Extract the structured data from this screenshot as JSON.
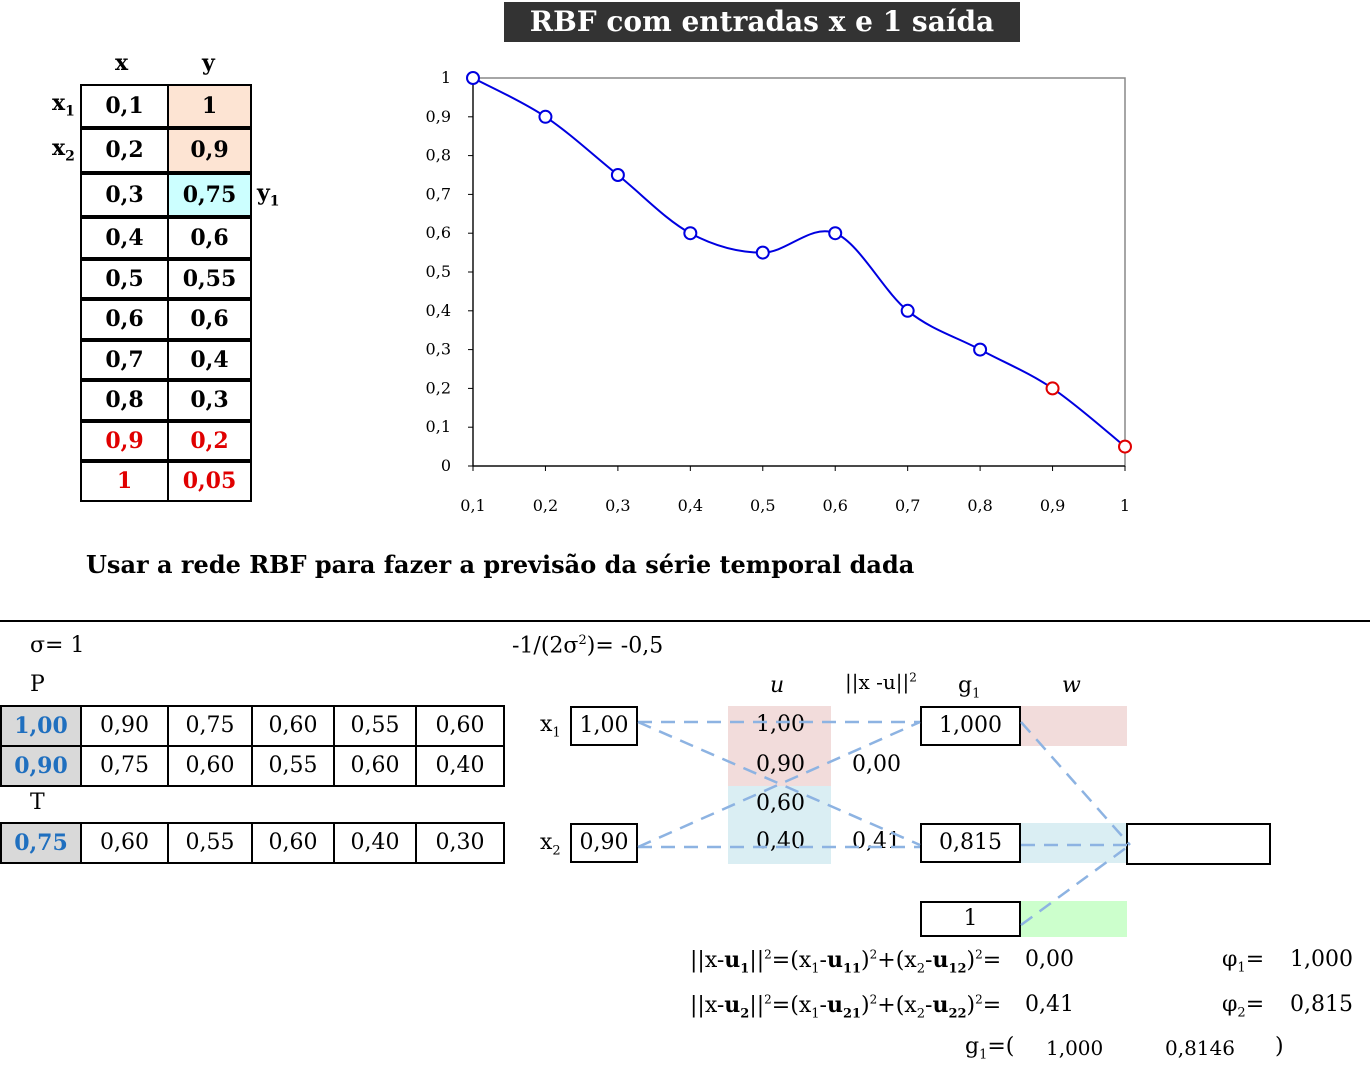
{
  "title": "RBF com entradas x e 1 saída",
  "data_table": {
    "col_x": "x",
    "col_y": "y",
    "row_label_1": "x",
    "row_label_1_sub": "1",
    "row_label_2": "x",
    "row_label_2_sub": "2",
    "y_label": "y",
    "y_label_sub": "1",
    "rows": [
      {
        "x": "0,1",
        "y": "1"
      },
      {
        "x": "0,2",
        "y": "0,9"
      },
      {
        "x": "0,3",
        "y": "0,75"
      },
      {
        "x": "0,4",
        "y": "0,6"
      },
      {
        "x": "0,5",
        "y": "0,55"
      },
      {
        "x": "0,6",
        "y": "0,6"
      },
      {
        "x": "0,7",
        "y": "0,4"
      },
      {
        "x": "0,8",
        "y": "0,3"
      },
      {
        "x": "0,9",
        "y": "0,2"
      },
      {
        "x": "1",
        "y": "0,05"
      }
    ]
  },
  "chart_data": {
    "type": "line",
    "x": [
      0.1,
      0.2,
      0.3,
      0.4,
      0.5,
      0.6,
      0.7,
      0.8,
      0.9,
      1.0
    ],
    "series": [
      {
        "values": [
          1,
          0.9,
          0.75,
          0.6,
          0.55,
          0.6,
          0.4,
          0.3,
          0.2,
          0.05
        ]
      }
    ],
    "marker_colors": [
      "#0000e0",
      "#0000e0",
      "#0000e0",
      "#0000e0",
      "#0000e0",
      "#0000e0",
      "#0000e0",
      "#0000e0",
      "#e00000",
      "#e00000"
    ],
    "line_color": "#0000e0",
    "ylim": [
      0,
      1
    ],
    "xlim": [
      0.1,
      1.0
    ],
    "x_tick_labels": [
      "0,1",
      "0,2",
      "0,3",
      "0,4",
      "0,5",
      "0,6",
      "0,7",
      "0,8",
      "0,9",
      "1"
    ],
    "y_tick_labels": [
      "0",
      "0,1",
      "0,2",
      "0,3",
      "0,4",
      "0,5",
      "0,6",
      "0,7",
      "0,8",
      "0,9",
      "1"
    ],
    "grid": false
  },
  "instruction": "Usar a rede RBF para fazer a previsão da série temporal dada",
  "sigma_label": "σ=",
  "sigma_value": "1",
  "coef_label_a": "-1/(2σ",
  "coef_label_sup": "2",
  "coef_label_b": ")=",
  "coef_value": "-0,5",
  "P_label": "P",
  "T_label": "T",
  "P_rows": [
    [
      "1,00",
      "0,90",
      "0,75",
      "0,60",
      "0,55",
      "0,60"
    ],
    [
      "0,90",
      "0,75",
      "0,60",
      "0,55",
      "0,60",
      "0,40"
    ]
  ],
  "T_row": [
    "0,75",
    "0,60",
    "0,55",
    "0,60",
    "0,40",
    "0,30"
  ],
  "net": {
    "x1_label": "x",
    "x1_sub": "1",
    "x2_label": "x",
    "x2_sub": "2",
    "x1_value": "1,00",
    "x2_value": "0,90",
    "u_header": "u",
    "dist_header_a": "||x -u||",
    "dist_header_sup": "2",
    "g_header": "g",
    "g_header_sub": "1",
    "w_header": "w",
    "u_values": [
      "1,00",
      "0,90",
      "0,60",
      "0,40"
    ],
    "dist_values": [
      "0,00",
      "0,41"
    ],
    "g_values": [
      "1,000",
      "0,815",
      "1"
    ],
    "output_value": ""
  },
  "formulas": {
    "d1_text": "||x-u1||2=(x1-u11)2+(x2-u12)2=",
    "d1_value": "0,00",
    "d2_text": "||x-u2||2=(x1-u21)2+(x2-u22)2=",
    "d2_value": "0,41",
    "phi1_label": "φ1=",
    "phi1_value": "1,000",
    "phi2_label": "φ2=",
    "phi2_value": "0,815",
    "g_label": "g1=(",
    "g_v1": "1,000",
    "g_v2": "0,8146",
    "g_close": ")"
  },
  "colors": {
    "peach": "#fde4d3",
    "cyan": "#ccffff",
    "pink": "#f2dcdb",
    "lightblue": "#daeef3",
    "green": "#ccffcc",
    "gray": "#d9d9d9",
    "dash": "#8db3e2",
    "red": "#e00000",
    "blue": "#1f6fbf"
  }
}
